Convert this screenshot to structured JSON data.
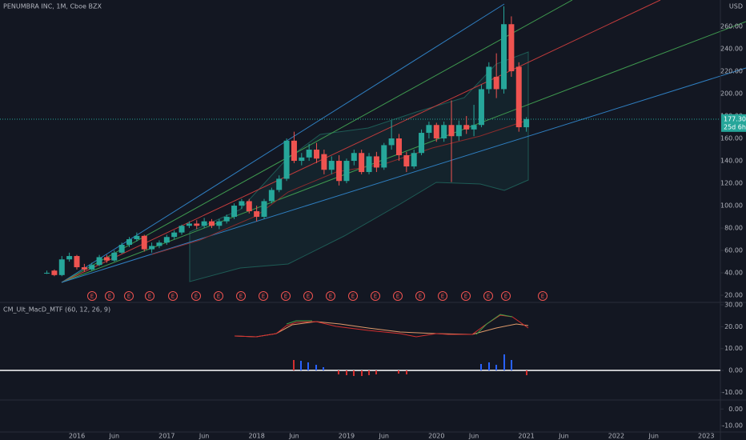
{
  "chart_data": {
    "type": "candlestick",
    "title": "PENUMBRA INC, 1M, Cboe BZX",
    "currency": "USD",
    "x": [
      "2015-09",
      "2015-10",
      "2015-11",
      "2015-12",
      "2016-01",
      "2016-02",
      "2016-03",
      "2016-04",
      "2016-05",
      "2016-06",
      "2016-07",
      "2016-08",
      "2016-09",
      "2016-10",
      "2016-11",
      "2016-12",
      "2017-01",
      "2017-02",
      "2017-03",
      "2017-04",
      "2017-05",
      "2017-06",
      "2017-07",
      "2017-08",
      "2017-09",
      "2017-10",
      "2017-11",
      "2017-12",
      "2018-01",
      "2018-02",
      "2018-03",
      "2018-04",
      "2018-05",
      "2018-06",
      "2018-07",
      "2018-08",
      "2018-09",
      "2018-10",
      "2018-11",
      "2018-12",
      "2019-01",
      "2019-02",
      "2019-03",
      "2019-04",
      "2019-05",
      "2019-06",
      "2019-07",
      "2019-08",
      "2019-09",
      "2019-10",
      "2019-11",
      "2019-12",
      "2020-01",
      "2020-02",
      "2020-03",
      "2020-04",
      "2020-05",
      "2020-06",
      "2020-07",
      "2020-08",
      "2020-09",
      "2020-10",
      "2020-11",
      "2020-12",
      "2021-01"
    ],
    "open": [
      40,
      42,
      38,
      52,
      55,
      45,
      43,
      47,
      54,
      51,
      58,
      65,
      70,
      73,
      61,
      64,
      67,
      72,
      76,
      82,
      84,
      82,
      86,
      82,
      86,
      90,
      100,
      104,
      95,
      90,
      104,
      114,
      124,
      158,
      140,
      143,
      150,
      146,
      132,
      140,
      122,
      140,
      147,
      130,
      144,
      134,
      154,
      160,
      145,
      135,
      147,
      165,
      172,
      160,
      172,
      162,
      172,
      168,
      172,
      204,
      215,
      204,
      262,
      224,
      170
    ],
    "high": [
      42,
      43,
      55,
      58,
      56,
      48,
      49,
      56,
      56,
      60,
      67,
      72,
      76,
      74,
      67,
      69,
      74,
      78,
      83,
      86,
      87,
      89,
      88,
      88,
      92,
      102,
      106,
      106,
      100,
      106,
      116,
      127,
      160,
      166,
      147,
      155,
      156,
      150,
      144,
      145,
      142,
      150,
      150,
      147,
      148,
      156,
      176,
      164,
      148,
      150,
      168,
      175,
      174,
      175,
      194,
      176,
      180,
      190,
      208,
      228,
      236,
      278,
      269,
      228,
      179
    ],
    "low": [
      39,
      37,
      37,
      50,
      43,
      41,
      42,
      46,
      49,
      50,
      57,
      63,
      68,
      59,
      58,
      62,
      65,
      70,
      74,
      80,
      79,
      80,
      80,
      79,
      84,
      88,
      97,
      93,
      86,
      88,
      102,
      112,
      122,
      138,
      136,
      140,
      138,
      128,
      128,
      118,
      120,
      136,
      128,
      128,
      130,
      132,
      150,
      140,
      130,
      133,
      145,
      160,
      157,
      157,
      121,
      158,
      164,
      162,
      170,
      200,
      196,
      200,
      215,
      166,
      166
    ],
    "close": [
      40,
      38,
      52,
      55,
      45,
      43,
      47,
      54,
      51,
      58,
      65,
      70,
      73,
      61,
      64,
      67,
      72,
      76,
      82,
      84,
      82,
      86,
      82,
      86,
      90,
      100,
      104,
      95,
      90,
      104,
      114,
      124,
      158,
      140,
      143,
      150,
      142,
      132,
      140,
      122,
      140,
      147,
      130,
      144,
      134,
      154,
      160,
      145,
      135,
      147,
      165,
      172,
      160,
      172,
      162,
      172,
      168,
      172,
      204,
      224,
      204,
      262,
      220,
      170,
      177.3
    ],
    "up_color": "#26a69a",
    "down_color": "#ef5350",
    "ylim": [
      13.6,
      283.6
    ],
    "yticks": [
      {
        "value": 20,
        "label": "20.00"
      },
      {
        "value": 40,
        "label": "40.00"
      },
      {
        "value": 60,
        "label": "60.00"
      },
      {
        "value": 80,
        "label": "80.00"
      },
      {
        "value": 100,
        "label": "100.00"
      },
      {
        "value": 120,
        "label": "120.00"
      },
      {
        "value": 140,
        "label": "140.00"
      },
      {
        "value": 160,
        "label": "160.00"
      },
      {
        "value": 180,
        "label": "180.00"
      },
      {
        "value": 200,
        "label": "200.00"
      },
      {
        "value": 220,
        "label": "220.00"
      },
      {
        "value": 240,
        "label": "240.00"
      },
      {
        "value": 260,
        "label": "260.00"
      }
    ],
    "xticks": [
      {
        "value": "2016-01",
        "label": "2016"
      },
      {
        "value": "2016-06",
        "label": "Jun"
      },
      {
        "value": "2017-01",
        "label": "2017"
      },
      {
        "value": "2017-06",
        "label": "Jun"
      },
      {
        "value": "2018-01",
        "label": "2018"
      },
      {
        "value": "2018-06",
        "label": "Jun"
      },
      {
        "value": "2019-01",
        "label": "2019"
      },
      {
        "value": "2019-06",
        "label": "Jun"
      },
      {
        "value": "2020-01",
        "label": "2020"
      },
      {
        "value": "2020-06",
        "label": "Jun"
      },
      {
        "value": "2021-01",
        "label": "2021"
      },
      {
        "value": "2021-06",
        "label": "Jun"
      },
      {
        "value": "2022-01",
        "label": "2022"
      },
      {
        "value": "2022-06",
        "label": "Jun"
      },
      {
        "value": "2023-01",
        "label": "2023"
      }
    ],
    "last_price": 177.3,
    "last_price_label": "177.30",
    "countdown": "25d 6h",
    "earnings": [
      "E",
      "E",
      "E",
      "E",
      "E",
      "E",
      "E",
      "E",
      "E",
      "E",
      "E",
      "E",
      "E",
      "E",
      "E",
      "E",
      "E",
      "E",
      "E",
      "E",
      "E"
    ]
  },
  "indicator": {
    "title": "CM_Ult_MacD_MTF (60, 12, 26, 9)",
    "ylim": [
      -13.5,
      31.1
    ],
    "yticks": [
      {
        "value": 30,
        "label": "30.00"
      },
      {
        "value": 20,
        "label": "20.00"
      },
      {
        "value": 10,
        "label": "10.00"
      },
      {
        "value": 0,
        "label": "0.00"
      },
      {
        "value": -10,
        "label": "-10.00"
      }
    ]
  },
  "indicator2": {
    "ylim": [
      -13.8,
      5.4
    ],
    "yticks": [
      {
        "value": 0,
        "label": "0.00"
      },
      {
        "value": -10,
        "label": "-10.00"
      }
    ]
  }
}
